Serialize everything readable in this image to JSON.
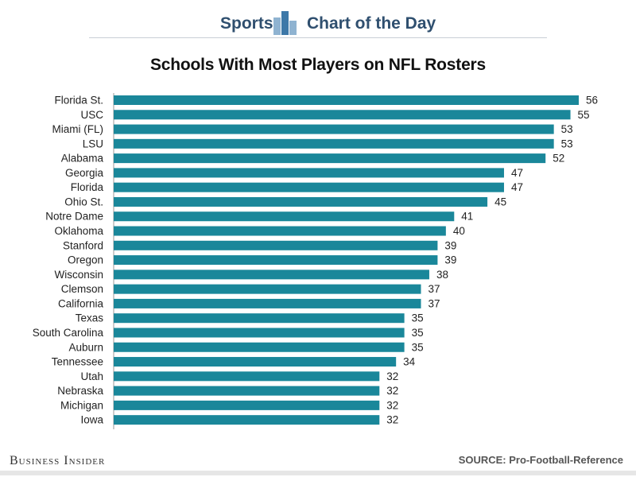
{
  "header": {
    "section_label": "Sports",
    "series_label": "Chart of the Day",
    "icon": "bar-chart-icon"
  },
  "footer": {
    "brand": "Business Insider",
    "source": "SOURCE: Pro-Football-Reference"
  },
  "colors": {
    "bar": "#1a879a",
    "header_text": "#2f4f6f",
    "icon_light": "#8fb3d1",
    "icon_dark": "#3d78a8"
  },
  "chart_data": {
    "type": "bar",
    "orientation": "horizontal",
    "title": "Schools With Most Players on NFL Rosters",
    "xlabel": "",
    "ylabel": "",
    "grid": false,
    "legend": "none",
    "xlim": [
      0,
      56
    ],
    "categories": [
      "Florida St.",
      "USC",
      "Miami (FL)",
      "LSU",
      "Alabama",
      "Georgia",
      "Florida",
      "Ohio St.",
      "Notre Dame",
      "Oklahoma",
      "Stanford",
      "Oregon",
      "Wisconsin",
      "Clemson",
      "California",
      "Texas",
      "South Carolina",
      "Auburn",
      "Tennessee",
      "Utah",
      "Nebraska",
      "Michigan",
      "Iowa"
    ],
    "values": [
      56,
      55,
      53,
      53,
      52,
      47,
      47,
      45,
      41,
      40,
      39,
      39,
      38,
      37,
      37,
      35,
      35,
      35,
      34,
      32,
      32,
      32,
      32
    ]
  }
}
